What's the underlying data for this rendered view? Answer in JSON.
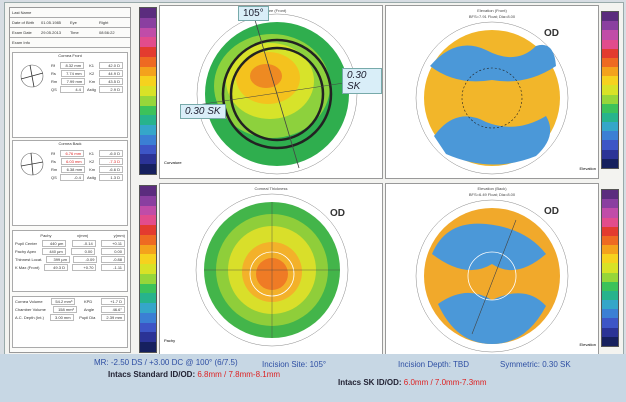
{
  "left_panel": {
    "header_rows": [
      {
        "label": "Last Name",
        "value": "",
        "label2": "",
        "value2": ""
      },
      {
        "label": "Date of Birth",
        "value": "01.05.1985",
        "label2": "Eye",
        "value2": "Right"
      },
      {
        "label": "Exam Date",
        "value": "29.05.2013",
        "label2": "Time",
        "value2": "08:56:22"
      },
      {
        "label": "Exam Info",
        "value": "",
        "label2": "",
        "value2": ""
      }
    ],
    "cornea_front": {
      "title": "Cornea Front",
      "rows": [
        [
          "Rf",
          "8.32 mm",
          "K1",
          "42.0 D"
        ],
        [
          "Rs",
          "7.74 mm",
          "K2",
          "44.9 D"
        ],
        [
          "Rm",
          "7.99 mm",
          "Km",
          "43.5 D"
        ],
        [
          "QS",
          "4.4",
          "Astig",
          "2.9 D"
        ]
      ]
    },
    "cornea_back": {
      "title": "Cornea Back",
      "rows": [
        [
          "Rf",
          "6.76 mm",
          "K1",
          "-6.0 D"
        ],
        [
          "Rs",
          "6.03 mm",
          "K2",
          "-7.3 D"
        ],
        [
          "Rm",
          "6.38 mm",
          "Km",
          "-6.6 D"
        ],
        [
          "QS",
          "-0.4",
          "Astig",
          "1.3 D"
        ]
      ]
    },
    "pachy": {
      "header": [
        "",
        "Pachy",
        "x(mm)",
        "y(mm)"
      ],
      "rows": [
        [
          "Pupil Center",
          "440 µm",
          "-0.14",
          "+0.11"
        ],
        [
          "Pachy Apex",
          "440 µm",
          "0.00",
          "0.00"
        ],
        [
          "Thinnest Locat.",
          "399 µm",
          "-0.09",
          "-0.88"
        ],
        [
          "K Max (Front)",
          "49.3 D",
          "+0.70",
          "-1.11"
        ]
      ]
    },
    "volume_rows": [
      [
        "Cornea Volume",
        "54.2 mm³",
        "KPD",
        "+1.7 D"
      ],
      [
        "Chamber Volume",
        "158 mm³",
        "Angle",
        "46.6°"
      ],
      [
        "A.C. Depth (Int.)",
        "3.00 mm",
        "Pupil Dia",
        "2.39 mm"
      ]
    ]
  },
  "maps": {
    "top_left": {
      "title": "Curvature (Front)",
      "callout_top": "105°",
      "callout_right": "0.30 SK",
      "callout_left": "0.30 SK",
      "scale_label": "Curvature"
    },
    "top_right": {
      "title": "Elevation (Front)",
      "subtitle": "BFS=7.91 Float; Dia=8.00",
      "eye": "OD",
      "scale_label": "Elevation"
    },
    "bottom_left": {
      "title": "Corneal Thickness",
      "eye": "OD",
      "scale_label": "Pachy"
    },
    "bottom_right": {
      "title": "Elevation (Back)",
      "subtitle": "BFS=6.49 Float; Dia=8.00",
      "eye": "OD",
      "scale_label": "Elevation"
    }
  },
  "footer": {
    "mr": "MR: -2.50 DS / +3.00 DC @ 100° (6/7.5)",
    "incision_site": "Incision Site: 105°",
    "incision_depth_label": "Incision Depth: ",
    "incision_depth_value": "TBD",
    "symmetric": "Symmetric: 0.30 SK",
    "intacs_std_label": "Intacs Standard ID/OD: ",
    "intacs_std_value": "6.8mm / 7.8mm-8.1mm",
    "intacs_sk_label": "Intacs SK ID/OD: ",
    "intacs_sk_value": "6.0mm / 7.0mm-7.3mm"
  },
  "colors": {
    "scale": [
      "#5b2c7e",
      "#8a3fa0",
      "#c04ca8",
      "#e24c8c",
      "#e33b2f",
      "#ee6a22",
      "#f4a21c",
      "#f6d21e",
      "#d8e227",
      "#96d63a",
      "#3cc25a",
      "#27b38c",
      "#35a6c9",
      "#3b7fd4",
      "#3d55c6",
      "#2b3396",
      "#16205e"
    ]
  }
}
